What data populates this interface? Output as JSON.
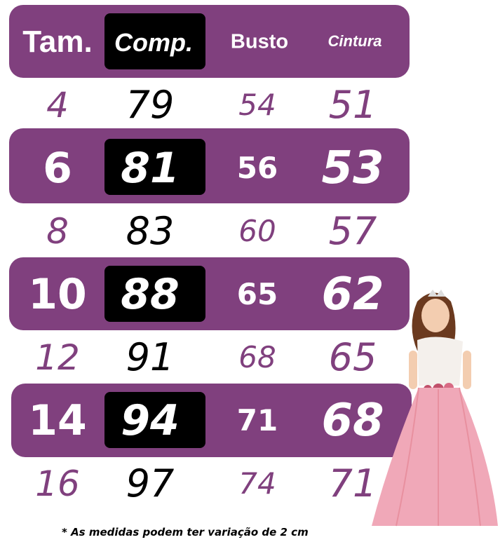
{
  "header": {
    "tam": "Tam.",
    "comp": "Comp.",
    "busto": "Busto",
    "cintura": "Cintura"
  },
  "rows": [
    {
      "tam": "4",
      "comp": "79",
      "busto": "54",
      "cintura": "51"
    },
    {
      "tam": "6",
      "comp": "81",
      "busto": "56",
      "cintura": "53"
    },
    {
      "tam": "8",
      "comp": "83",
      "busto": "60",
      "cintura": "57"
    },
    {
      "tam": "10",
      "comp": "88",
      "busto": "65",
      "cintura": "62"
    },
    {
      "tam": "12",
      "comp": "91",
      "busto": "68",
      "cintura": "65"
    },
    {
      "tam": "14",
      "comp": "94",
      "busto": "71",
      "cintura": "68"
    },
    {
      "tam": "16",
      "comp": "97",
      "busto": "74",
      "cintura": "71"
    }
  ],
  "footnote": "* As medidas podem ter variação de 2 cm",
  "colors": {
    "band": "#80407e",
    "comp_box": "#000000",
    "light_text": "#80407e"
  },
  "image": "girl-in-pink-dress-photo"
}
